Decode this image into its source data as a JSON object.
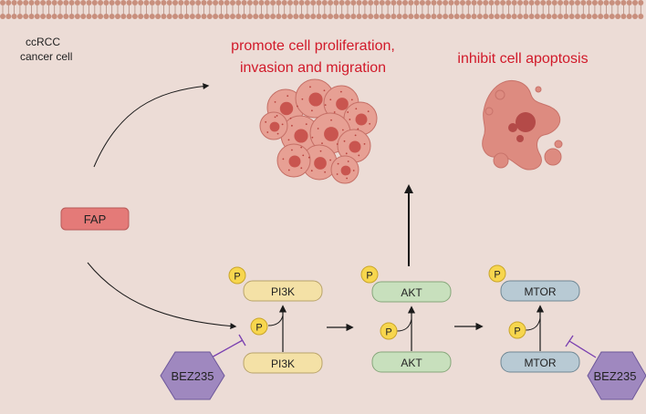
{
  "cell_label_line1": "ccRCC",
  "cell_label_line2": "cancer cell",
  "fap_label": "FAP",
  "outcome_proliferation_line1": "promote cell proliferation,",
  "outcome_proliferation_line2": "invasion and migration",
  "outcome_apoptosis": "inhibit cell apoptosis",
  "phospho_label": "P",
  "inhibitor_label": "BEZ235",
  "pathway": {
    "pi3k": "PI3K",
    "akt": "AKT",
    "mtor": "MTOR"
  },
  "colors": {
    "background": "#ecdcd6",
    "membrane_head": "#c88f7d",
    "outcome_text": "#d11a2a",
    "fap_fill": "#e47a78",
    "pi3k_fill": "#f4e1a6",
    "akt_fill": "#c8e0bd",
    "mtor_fill": "#b8cad4",
    "phospho_fill": "#f7d64e",
    "inhibitor_fill": "#9f88bf",
    "inhibitor_line": "#7a3fb0",
    "cell_fill": "#dd8b80"
  }
}
